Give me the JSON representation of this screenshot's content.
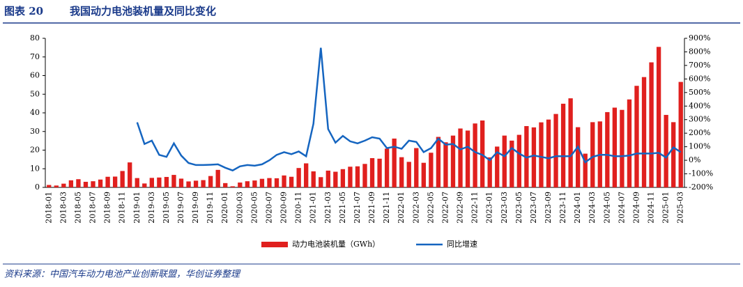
{
  "chart_data": {
    "type": "bar-line",
    "figure_label": "图表 20",
    "title": "我国动力电池装机量及同比变化",
    "source": "资料来源：中国汽车动力电池产业创新联盟，华创证券整理",
    "categories": [
      "2018-01",
      null,
      "2018-03",
      null,
      "2018-05",
      null,
      "2018-07",
      null,
      "2018-09",
      null,
      "2018-11",
      null,
      "2019-01",
      null,
      "2019-03",
      null,
      "2019-05",
      null,
      "2019-07",
      null,
      "2019-09",
      null,
      "2019-11",
      null,
      "2020-01",
      null,
      "2020-03",
      null,
      "2020-05",
      null,
      "2020-07",
      null,
      "2020-09",
      null,
      "2020-11",
      null,
      "2021-01",
      null,
      "2021-03",
      null,
      "2021-05",
      null,
      "2021-07",
      null,
      "2021-09",
      null,
      "2021-11",
      null,
      "2022-01",
      null,
      "2022-03",
      null,
      "2022-05",
      null,
      "2022-07",
      null,
      "2022-09",
      null,
      "2022-11",
      null,
      "2023-01",
      null,
      "2023-03",
      null,
      "2023-05",
      null,
      "2023-07",
      null,
      "2023-09",
      null,
      "2023-11",
      null,
      "2024-01",
      null,
      "2024-03",
      null,
      "2024-05",
      null,
      "2024-07",
      null,
      "2024-09",
      null,
      "2024-11",
      null,
      "2025-01",
      null,
      "2025-03"
    ],
    "series": [
      {
        "name": "动力电池装机量（GWh）",
        "type": "bar",
        "color": "#e0201e",
        "values": [
          1.3,
          1.0,
          2.0,
          3.8,
          4.4,
          3.0,
          3.3,
          4.2,
          5.7,
          5.8,
          8.8,
          13.4,
          5.0,
          2.1,
          5.1,
          5.3,
          5.6,
          6.7,
          4.7,
          3.2,
          3.6,
          3.9,
          6.1,
          9.4,
          2.3,
          0.6,
          2.6,
          3.3,
          3.7,
          4.6,
          5.0,
          4.9,
          6.4,
          5.7,
          10.4,
          12.9,
          8.6,
          5.5,
          9.0,
          8.4,
          9.8,
          11.1,
          11.3,
          12.6,
          15.7,
          15.4,
          20.8,
          26.2,
          16.2,
          13.7,
          21.1,
          13.2,
          18.6,
          27.1,
          24.2,
          27.8,
          31.6,
          30.5,
          34.3,
          35.9,
          16.1,
          21.9,
          27.8,
          25.1,
          28.2,
          32.9,
          32.2,
          34.9,
          36.4,
          39.4,
          44.9,
          47.8,
          32.3,
          18.1,
          35.0,
          35.4,
          40.4,
          42.8,
          41.6,
          47.2,
          54.5,
          59.2,
          67.1,
          75.4,
          38.9,
          35.0,
          56.6
        ]
      },
      {
        "name": "同比增速",
        "type": "line",
        "axis": "y2",
        "color": "#1565c0",
        "values": [
          null,
          null,
          null,
          null,
          null,
          null,
          null,
          null,
          null,
          null,
          null,
          null,
          280,
          120,
          145,
          40,
          25,
          125,
          35,
          -20,
          -35,
          -35,
          -33,
          -30,
          -55,
          -75,
          -45,
          -35,
          -40,
          -30,
          0,
          40,
          60,
          45,
          65,
          30,
          270,
          830,
          230,
          130,
          180,
          140,
          125,
          145,
          170,
          160,
          90,
          100,
          85,
          145,
          135,
          60,
          90,
          160,
          115,
          120,
          80,
          100,
          60,
          40,
          0,
          60,
          30,
          90,
          50,
          20,
          35,
          25,
          15,
          30,
          30,
          30,
          100,
          -15,
          25,
          40,
          40,
          30,
          30,
          35,
          50,
          50,
          50,
          55,
          20,
          95,
          60
        ]
      }
    ],
    "ylim": [
      0,
      80
    ],
    "yticks": [
      0,
      10,
      20,
      30,
      40,
      50,
      60,
      70,
      80
    ],
    "y2lim": [
      -200,
      900
    ],
    "y2ticks": [
      {
        "value": -200,
        "label": "-200%"
      },
      {
        "value": -100,
        "label": "-100%"
      },
      {
        "value": 0,
        "label": "0%"
      },
      {
        "value": 100,
        "label": "100%"
      },
      {
        "value": 200,
        "label": "200%"
      },
      {
        "value": 300,
        "label": "300%"
      },
      {
        "value": 400,
        "label": "400%"
      },
      {
        "value": 500,
        "label": "500%"
      },
      {
        "value": 600,
        "label": "600%"
      },
      {
        "value": 700,
        "label": "700%"
      },
      {
        "value": 800,
        "label": "800%"
      },
      {
        "value": 900,
        "label": "900%"
      }
    ],
    "legend": "bottom"
  }
}
